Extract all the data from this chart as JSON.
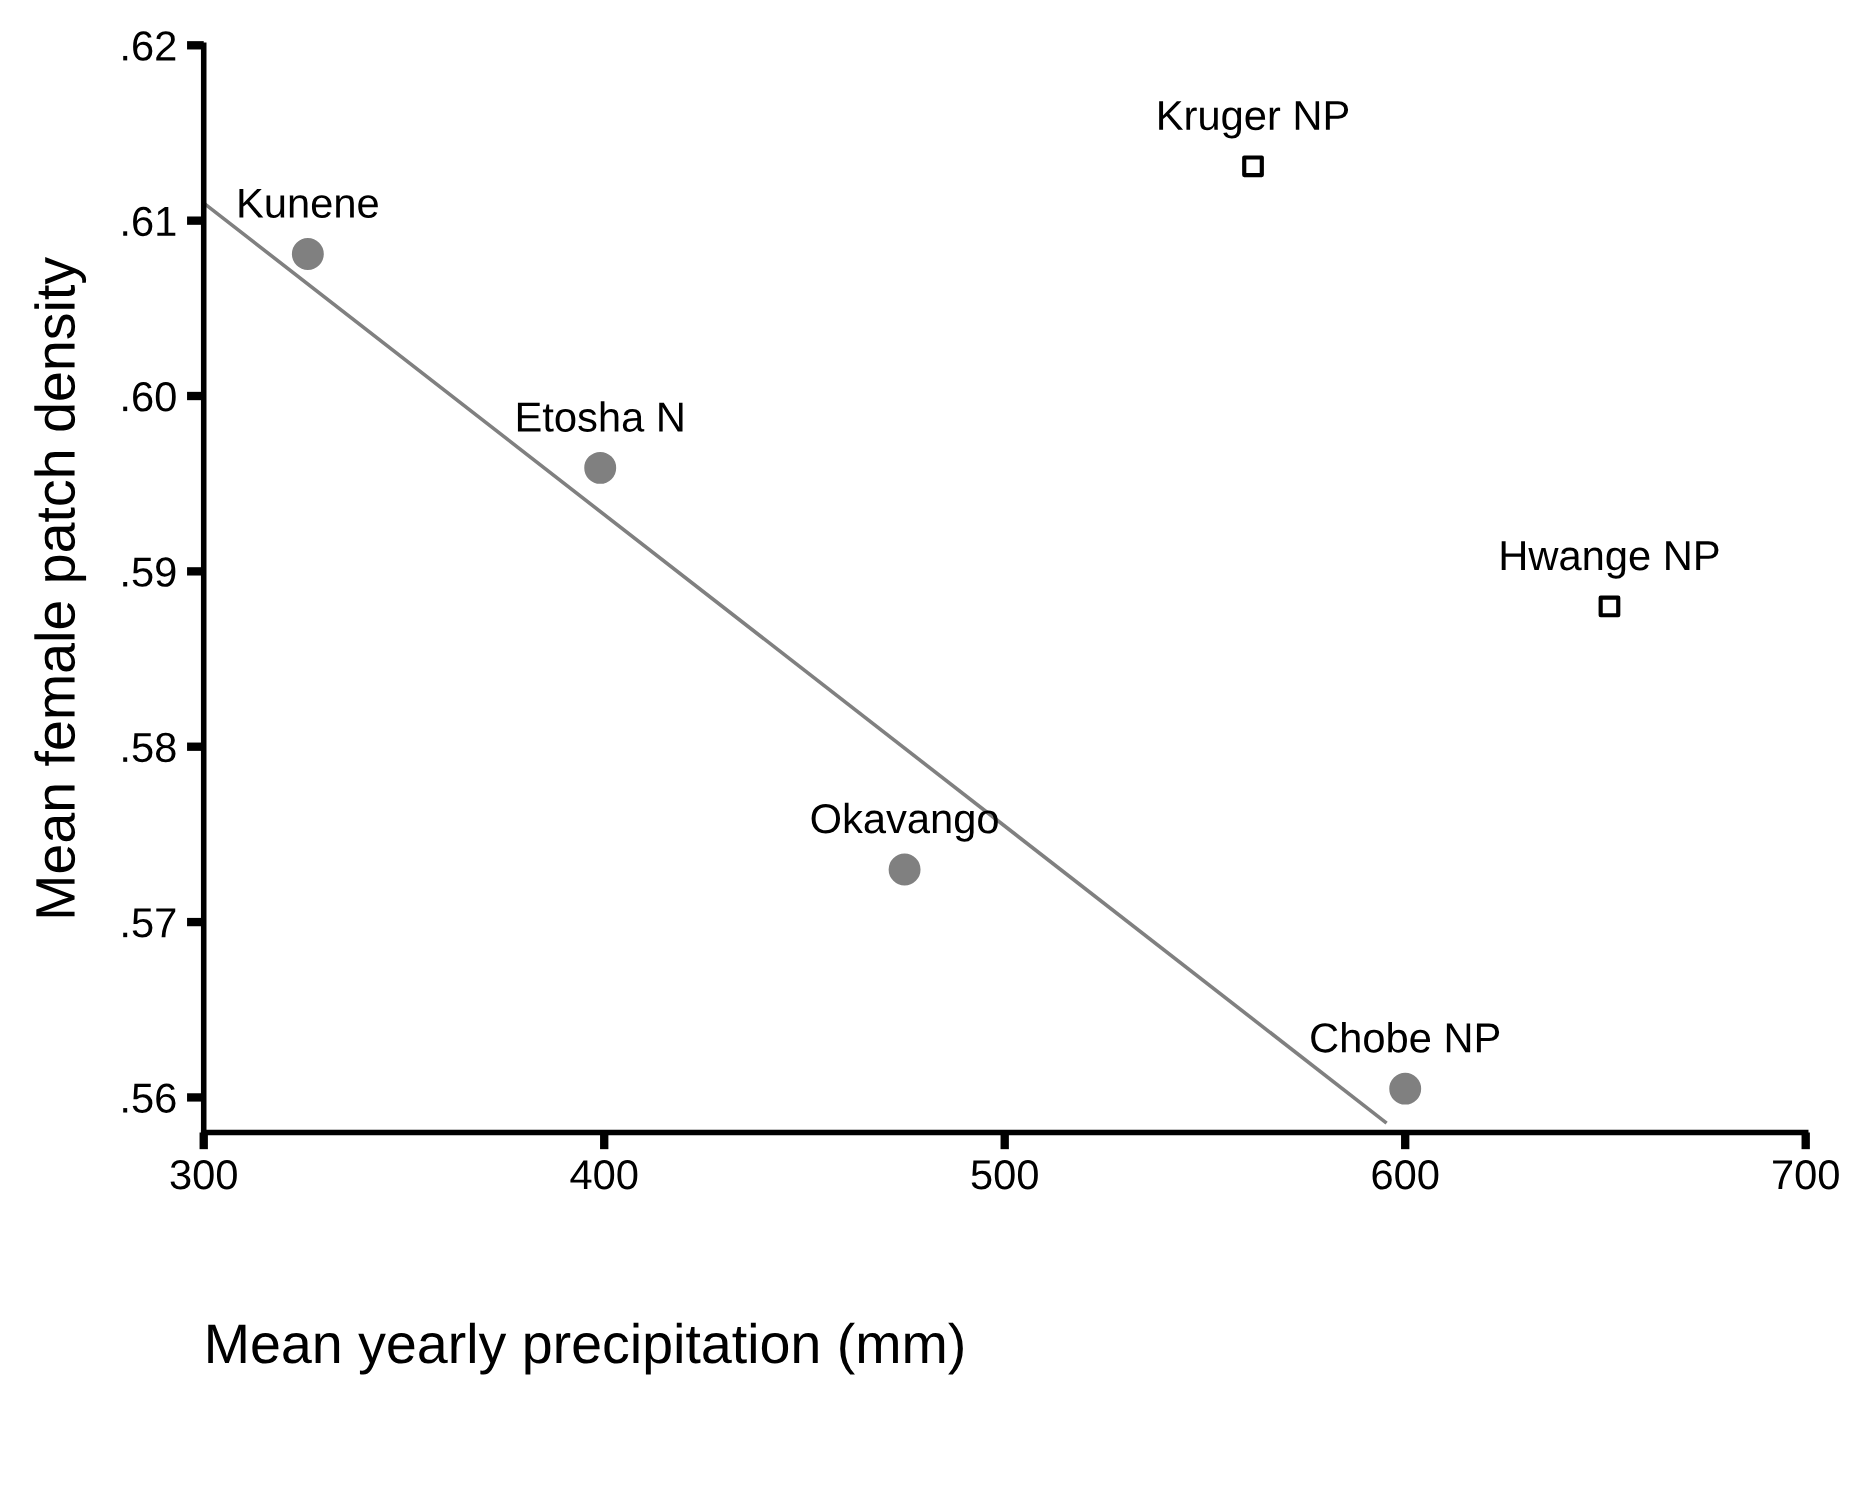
{
  "chart_data": {
    "type": "scatter",
    "xlabel": "Mean yearly precipitation (mm)",
    "ylabel": "Mean female patch density",
    "xlim": [
      300,
      700
    ],
    "xticks": [
      300,
      400,
      500,
      600,
      700
    ],
    "ylim": [
      0.558,
      0.62
    ],
    "yticks": [
      {
        "value": 0.56,
        "label": ".56"
      },
      {
        "value": 0.57,
        "label": ".57"
      },
      {
        "value": 0.58,
        "label": ".58"
      },
      {
        "value": 0.59,
        "label": ".59"
      },
      {
        "value": 0.6,
        "label": ".60"
      },
      {
        "value": 0.61,
        "label": ".61"
      },
      {
        "value": 0.62,
        "label": ".62"
      }
    ],
    "grid": false,
    "legend": false,
    "series": [
      {
        "marker": "circle",
        "color": "#808080",
        "x": [
          326,
          399,
          475,
          600
        ],
        "values": [
          0.6081,
          0.5959,
          0.573,
          0.5605
        ]
      },
      {
        "type": "scatter",
        "marker": "square",
        "color": "#000000",
        "x": [
          562,
          651
        ],
        "values": [
          0.6131,
          0.588
        ]
      },
      {
        "type": "line",
        "marker": "none",
        "color": "#808080",
        "x": [
          300,
          595
        ],
        "values": [
          0.611,
          0.5586
        ]
      }
    ],
    "annotations": [
      {
        "text": "Kunene",
        "x": 326,
        "y": 0.6081
      },
      {
        "text": "Etosha N",
        "x": 399,
        "y": 0.5959
      },
      {
        "text": "Okavango",
        "x": 475,
        "y": 0.573
      },
      {
        "text": "Chobe NP",
        "x": 600,
        "y": 0.5605
      },
      {
        "text": "Kruger NP",
        "x": 562,
        "y": 0.6131
      },
      {
        "text": "Hwange NP",
        "x": 651,
        "y": 0.588
      }
    ]
  }
}
